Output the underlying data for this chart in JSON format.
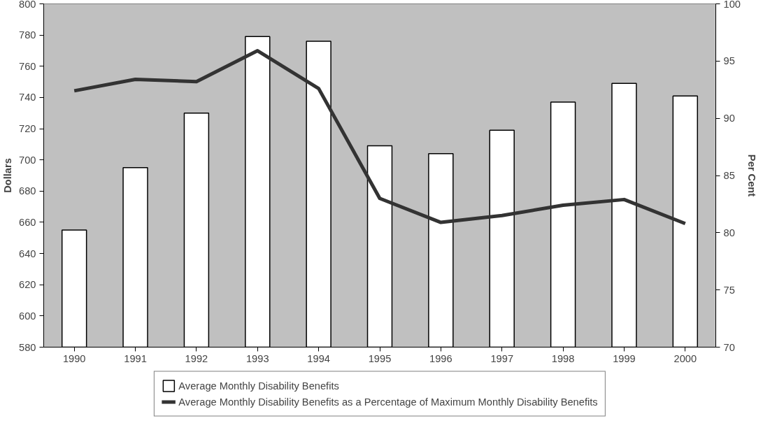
{
  "chart_data": {
    "type": "bar",
    "categories": [
      "1990",
      "1991",
      "1992",
      "1993",
      "1994",
      "1995",
      "1996",
      "1997",
      "1998",
      "1999",
      "2000"
    ],
    "series": [
      {
        "name": "Average Monthly Disability Benefits",
        "color": "#ffffff",
        "values": [
          655,
          695,
          730,
          779,
          776,
          709,
          704,
          719,
          737,
          749,
          741
        ]
      },
      {
        "name": "Average Monthly Disability Benefits as a Percentage of Maximum Monthly Disability Benefits",
        "type": "line",
        "axis": "y2",
        "color": "#333333",
        "values": [
          92.4,
          93.4,
          93.2,
          95.9,
          92.6,
          83.0,
          80.9,
          81.5,
          82.4,
          82.9,
          80.8
        ]
      }
    ],
    "ylabel": "Dollars",
    "y2label": "Per Cent",
    "ylim": [
      580,
      800
    ],
    "yticks": [
      580,
      600,
      620,
      640,
      660,
      680,
      700,
      720,
      740,
      760,
      780,
      800
    ],
    "y2lim": [
      70,
      100
    ],
    "y2ticks": [
      70,
      75,
      80,
      85,
      90,
      95,
      100
    ],
    "grid": false,
    "legend": "bottom",
    "marker": "none",
    "line_style": "solid"
  }
}
